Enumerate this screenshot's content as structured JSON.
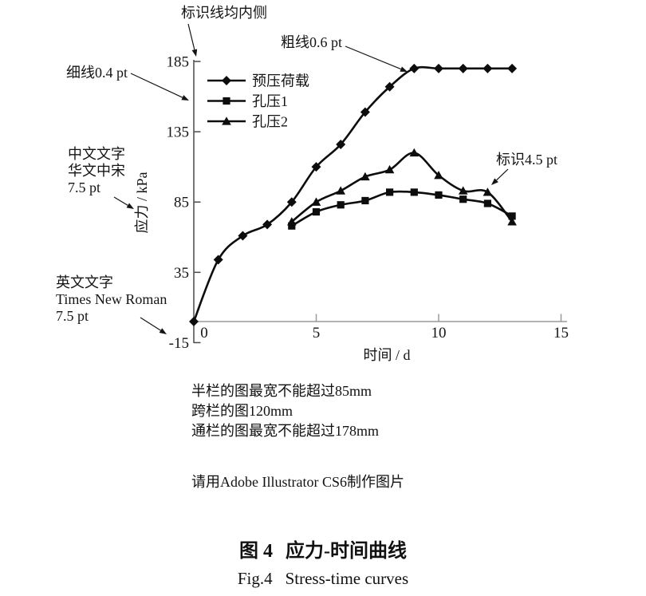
{
  "chart_data": {
    "type": "line",
    "title": "",
    "xlabel": "时间 / d",
    "ylabel": "应力 / kPa",
    "xlim": [
      0,
      15
    ],
    "ylim": [
      -15,
      185
    ],
    "xticks": [
      0,
      5,
      10,
      15
    ],
    "yticks": [
      185,
      135,
      85,
      35,
      -15
    ],
    "grid": false,
    "legend_position": "upper-left-inside",
    "series": [
      {
        "name": "预压荷载",
        "marker": "diamond",
        "x": [
          0,
          1,
          2,
          3,
          4,
          5,
          6,
          7,
          8,
          9,
          10,
          11,
          12,
          13
        ],
        "values": [
          0,
          44,
          61,
          69,
          85,
          110,
          126,
          149,
          167,
          180,
          180,
          180,
          180,
          180
        ]
      },
      {
        "name": "孔压1",
        "marker": "square",
        "x": [
          4,
          5,
          6,
          7,
          8,
          9,
          10,
          11,
          12,
          13
        ],
        "values": [
          68,
          78,
          83,
          86,
          92,
          92,
          90,
          87,
          84,
          75
        ]
      },
      {
        "name": "孔压2",
        "marker": "triangle",
        "x": [
          4,
          5,
          6,
          7,
          8,
          9,
          10,
          11,
          12,
          13
        ],
        "values": [
          71,
          85,
          93,
          103,
          108,
          120,
          104,
          93,
          92,
          71
        ]
      }
    ],
    "annotations": [
      {
        "id": "tick_note",
        "lines": [
          "标识线均内侧"
        ]
      },
      {
        "id": "thick_line",
        "lines": [
          "粗线0.6 pt"
        ]
      },
      {
        "id": "thin_line",
        "lines": [
          "细线0.4 pt"
        ]
      },
      {
        "id": "cn_font",
        "lines": [
          "中文文字",
          "华文中宋",
          "7.5 pt"
        ]
      },
      {
        "id": "en_font",
        "lines": [
          "英文文字",
          "Times New Roman",
          "7.5 pt"
        ]
      },
      {
        "id": "label_size",
        "lines": [
          "标识4.5 pt"
        ]
      }
    ],
    "colors": {
      "curve": "#0d0d0d",
      "y_axis": "#4a4a4a",
      "x_axis": "#9a9a9a",
      "text": "#141414"
    }
  },
  "figure": {
    "notes": {
      "width_rules": [
        "半栏的图最宽不能超过85mm",
        "跨栏的图120mm",
        "通栏的图最宽不能超过178mm"
      ],
      "tool_note": "请用Adobe Illustrator CS6制作图片"
    },
    "caption": {
      "cn_label": "图 4",
      "cn_title": "应力-时间曲线",
      "en_label": "Fig.4",
      "en_title": "Stress-time curves"
    }
  }
}
